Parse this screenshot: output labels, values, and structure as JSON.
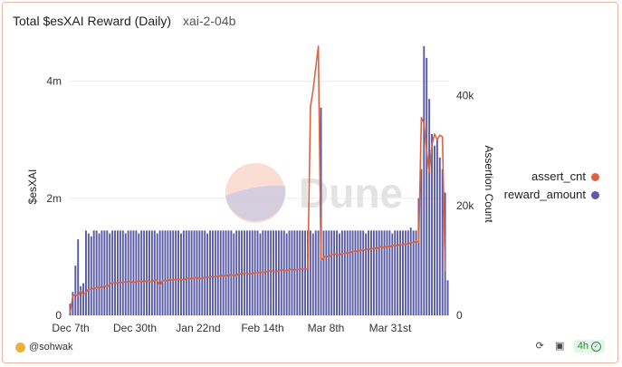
{
  "header": {
    "title": "Total $esXAI Reward (Daily)",
    "subtitle": "xai-2-04b"
  },
  "footer": {
    "author": "@sohwak",
    "age": "4h"
  },
  "colors": {
    "bars": "#5a5ba6",
    "line": "#e0633f",
    "grid": "#ececec",
    "watermark": "#e5e5e5"
  },
  "chart_data": {
    "type": "bar+line",
    "watermark": "Dune",
    "x_ticks": [
      "Dec 7th",
      "Dec 30th",
      "Jan 22nd",
      "Feb 14th",
      "Mar 8th",
      "Mar 31st"
    ],
    "left_axis": {
      "label": "$esXAI",
      "ticks": [
        "0",
        "2m",
        "4m"
      ],
      "range": [
        0,
        4600000
      ]
    },
    "right_axis": {
      "label": "Assertion Count",
      "ticks": [
        "0",
        "20k",
        "40k"
      ],
      "range": [
        0,
        49000
      ]
    },
    "legend": [
      "assert_cnt",
      "reward_amount"
    ],
    "series": [
      {
        "name": "reward_amount",
        "axis": "left",
        "values": [
          200000,
          400000,
          850000,
          1300000,
          500000,
          550000,
          1450000,
          1400000,
          1350000,
          1450000,
          1450000,
          1400000,
          1450000,
          1450000,
          1450000,
          1400000,
          1450000,
          1450000,
          1450000,
          1450000,
          1450000,
          1400000,
          1450000,
          1450000,
          1450000,
          1450000,
          1400000,
          1450000,
          1450000,
          1450000,
          1450000,
          1450000,
          1450000,
          1400000,
          1450000,
          1450000,
          1450000,
          1450000,
          1450000,
          1450000,
          1450000,
          1450000,
          1400000,
          1450000,
          1450000,
          1450000,
          1450000,
          1450000,
          1450000,
          1450000,
          1450000,
          1450000,
          1400000,
          1450000,
          1450000,
          1450000,
          1450000,
          1450000,
          1450000,
          1450000,
          1450000,
          1450000,
          1400000,
          1450000,
          1450000,
          1450000,
          1450000,
          1450000,
          1450000,
          1450000,
          1450000,
          1450000,
          1400000,
          1450000,
          1450000,
          1450000,
          1450000,
          1450000,
          1450000,
          1450000,
          1450000,
          1450000,
          1400000,
          1450000,
          1450000,
          1450000,
          1450000,
          1450000,
          1450000,
          1450000,
          1450000,
          1450000,
          1400000,
          1450000,
          1450000,
          3550000,
          1450000,
          1450000,
          1450000,
          1450000,
          1450000,
          1450000,
          1400000,
          1450000,
          1450000,
          1450000,
          1450000,
          1450000,
          1450000,
          1450000,
          1450000,
          1450000,
          1400000,
          1450000,
          1450000,
          1450000,
          1450000,
          1450000,
          1450000,
          1450000,
          1450000,
          1450000,
          1400000,
          1450000,
          1450000,
          1450000,
          1450000,
          1450000,
          1450000,
          1500000,
          1450000,
          1450000,
          2000000,
          2500000,
          4600000,
          4400000,
          3700000,
          3100000,
          2900000,
          3000000,
          2700000,
          2500000,
          2100000,
          600000
        ]
      },
      {
        "name": "assert_cnt",
        "axis": "right",
        "values": [
          500,
          3500,
          3800,
          3500,
          4500,
          3800,
          4200,
          4800,
          4700,
          5000,
          4900,
          5200,
          5000,
          5400,
          5200,
          5600,
          6000,
          5800,
          6000,
          5900,
          6100,
          6000,
          6100,
          6200,
          5900,
          6200,
          6100,
          6300,
          6000,
          6400,
          6200,
          6100,
          6500,
          6300,
          5400,
          6400,
          6300,
          6300,
          6500,
          6400,
          6600,
          6500,
          6600,
          6400,
          6700,
          6800,
          6600,
          6800,
          6900,
          6700,
          6700,
          7000,
          6900,
          7000,
          7100,
          7000,
          7200,
          7100,
          7300,
          7100,
          7400,
          7300,
          7400,
          7200,
          7600,
          7500,
          7700,
          7600,
          7500,
          7600,
          7800,
          7700,
          7900,
          7800,
          7900,
          8000,
          8200,
          8000,
          7900,
          8100,
          8300,
          8200,
          8100,
          8300,
          8400,
          8200,
          8400,
          8300,
          8500,
          8400,
          8400,
          38000,
          41000,
          45000,
          49000,
          10000,
          10500,
          10800,
          10600,
          11000,
          11200,
          11100,
          10900,
          11300,
          11200,
          11500,
          11300,
          11700,
          11600,
          11800,
          11700,
          12000,
          11800,
          12200,
          12000,
          12300,
          12100,
          12400,
          12500,
          12300,
          12600,
          12400,
          12700,
          12800,
          12600,
          13000,
          12800,
          13100,
          12900,
          13300,
          13200,
          13500,
          13300,
          36000,
          35000,
          30000,
          26000,
          31000,
          33000,
          32000,
          32800,
          32500,
          8000
        ]
      }
    ]
  }
}
